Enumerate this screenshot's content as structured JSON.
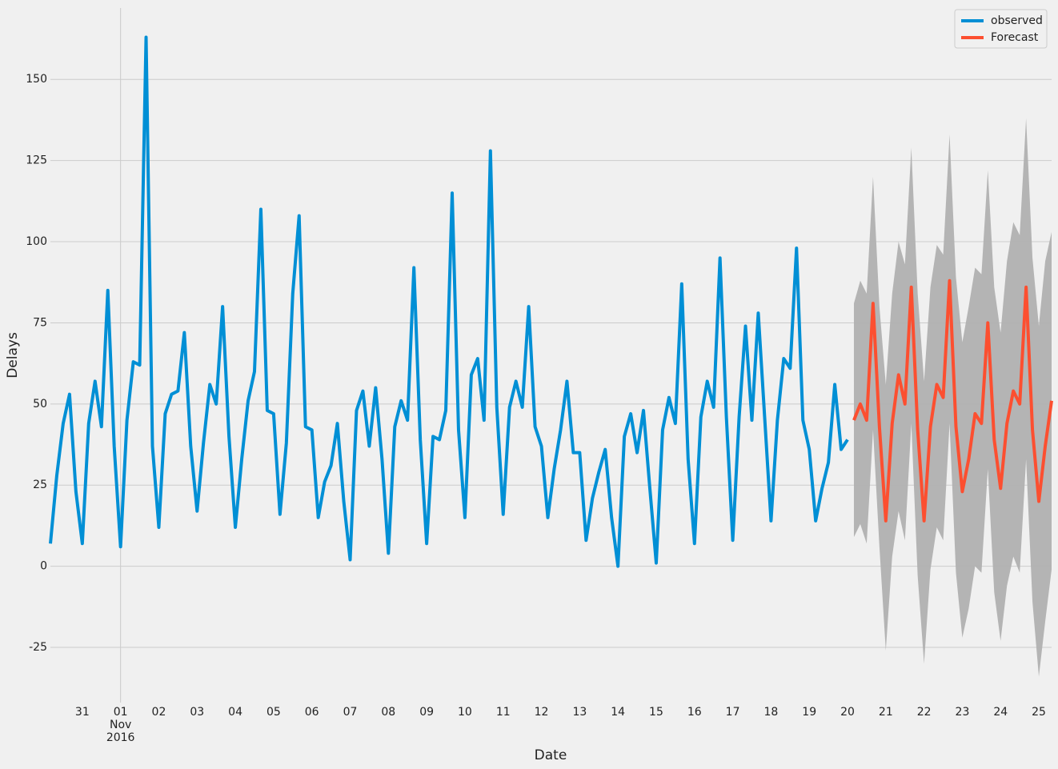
{
  "chart_data": {
    "type": "line",
    "x_label": "Date",
    "y_label": "Delays",
    "xlim": [
      "2016-10-30T04:00",
      "2016-11-25T08:00"
    ],
    "ylim": [
      -42,
      172
    ],
    "yticks": [
      -25,
      0,
      25,
      50,
      75,
      100,
      125,
      150
    ],
    "xticks": [
      {
        "value": "2016-10-31T00:00",
        "label": "31"
      },
      {
        "value": "2016-11-01T00:00",
        "label": "01\nNov\n2016"
      },
      {
        "value": "2016-11-02T00:00",
        "label": "02"
      },
      {
        "value": "2016-11-03T00:00",
        "label": "03"
      },
      {
        "value": "2016-11-04T00:00",
        "label": "04"
      },
      {
        "value": "2016-11-05T00:00",
        "label": "05"
      },
      {
        "value": "2016-11-06T00:00",
        "label": "06"
      },
      {
        "value": "2016-11-07T00:00",
        "label": "07"
      },
      {
        "value": "2016-11-08T00:00",
        "label": "08"
      },
      {
        "value": "2016-11-09T00:00",
        "label": "09"
      },
      {
        "value": "2016-11-10T00:00",
        "label": "10"
      },
      {
        "value": "2016-11-11T00:00",
        "label": "11"
      },
      {
        "value": "2016-11-12T00:00",
        "label": "12"
      },
      {
        "value": "2016-11-13T00:00",
        "label": "13"
      },
      {
        "value": "2016-11-14T00:00",
        "label": "14"
      },
      {
        "value": "2016-11-15T00:00",
        "label": "15"
      },
      {
        "value": "2016-11-16T00:00",
        "label": "16"
      },
      {
        "value": "2016-11-17T00:00",
        "label": "17"
      },
      {
        "value": "2016-11-18T00:00",
        "label": "18"
      },
      {
        "value": "2016-11-19T00:00",
        "label": "19"
      },
      {
        "value": "2016-11-20T00:00",
        "label": "20"
      },
      {
        "value": "2016-11-21T00:00",
        "label": "21"
      },
      {
        "value": "2016-11-22T00:00",
        "label": "22"
      },
      {
        "value": "2016-11-23T00:00",
        "label": "23"
      },
      {
        "value": "2016-11-24T00:00",
        "label": "24"
      },
      {
        "value": "2016-11-25T00:00",
        "label": "25"
      }
    ],
    "major_tick": "2016-11-01T00:00",
    "grid": true,
    "legend": "upper right",
    "series": [
      {
        "name": "observed",
        "color": "#008fd5",
        "x": [
          "2016-10-30T04:00",
          "2016-10-30T08:00",
          "2016-10-30T12:00",
          "2016-10-30T16:00",
          "2016-10-30T20:00",
          "2016-10-31T00:00",
          "2016-10-31T04:00",
          "2016-10-31T08:00",
          "2016-10-31T12:00",
          "2016-10-31T16:00",
          "2016-10-31T20:00",
          "2016-11-01T00:00",
          "2016-11-01T04:00",
          "2016-11-01T08:00",
          "2016-11-01T12:00",
          "2016-11-01T16:00",
          "2016-11-01T20:00",
          "2016-11-02T00:00",
          "2016-11-02T04:00",
          "2016-11-02T08:00",
          "2016-11-02T12:00",
          "2016-11-02T16:00",
          "2016-11-02T20:00",
          "2016-11-03T00:00",
          "2016-11-03T04:00",
          "2016-11-03T08:00",
          "2016-11-03T12:00",
          "2016-11-03T16:00",
          "2016-11-03T20:00",
          "2016-11-04T00:00",
          "2016-11-04T04:00",
          "2016-11-04T08:00",
          "2016-11-04T12:00",
          "2016-11-04T16:00",
          "2016-11-04T20:00",
          "2016-11-05T00:00",
          "2016-11-05T04:00",
          "2016-11-05T08:00",
          "2016-11-05T12:00",
          "2016-11-05T16:00",
          "2016-11-05T20:00",
          "2016-11-06T00:00",
          "2016-11-06T04:00",
          "2016-11-06T08:00",
          "2016-11-06T12:00",
          "2016-11-06T16:00",
          "2016-11-06T20:00",
          "2016-11-07T00:00",
          "2016-11-07T04:00",
          "2016-11-07T08:00",
          "2016-11-07T12:00",
          "2016-11-07T16:00",
          "2016-11-07T20:00",
          "2016-11-08T00:00",
          "2016-11-08T04:00",
          "2016-11-08T08:00",
          "2016-11-08T12:00",
          "2016-11-08T16:00",
          "2016-11-08T20:00",
          "2016-11-09T00:00",
          "2016-11-09T04:00",
          "2016-11-09T08:00",
          "2016-11-09T12:00",
          "2016-11-09T16:00",
          "2016-11-09T20:00",
          "2016-11-10T00:00",
          "2016-11-10T04:00",
          "2016-11-10T08:00",
          "2016-11-10T12:00",
          "2016-11-10T16:00",
          "2016-11-10T20:00",
          "2016-11-11T00:00",
          "2016-11-11T04:00",
          "2016-11-11T08:00",
          "2016-11-11T12:00",
          "2016-11-11T16:00",
          "2016-11-11T20:00",
          "2016-11-12T00:00",
          "2016-11-12T04:00",
          "2016-11-12T08:00",
          "2016-11-12T12:00",
          "2016-11-12T16:00",
          "2016-11-12T20:00",
          "2016-11-13T00:00",
          "2016-11-13T04:00",
          "2016-11-13T08:00",
          "2016-11-13T12:00",
          "2016-11-13T16:00",
          "2016-11-13T20:00",
          "2016-11-14T00:00",
          "2016-11-14T04:00",
          "2016-11-14T08:00",
          "2016-11-14T12:00",
          "2016-11-14T16:00",
          "2016-11-14T20:00",
          "2016-11-15T00:00",
          "2016-11-15T04:00",
          "2016-11-15T08:00",
          "2016-11-15T12:00",
          "2016-11-15T16:00",
          "2016-11-15T20:00",
          "2016-11-16T00:00",
          "2016-11-16T04:00",
          "2016-11-16T08:00",
          "2016-11-16T12:00",
          "2016-11-16T16:00",
          "2016-11-16T20:00",
          "2016-11-17T00:00",
          "2016-11-17T04:00",
          "2016-11-17T08:00",
          "2016-11-17T12:00",
          "2016-11-17T16:00",
          "2016-11-17T20:00",
          "2016-11-18T00:00",
          "2016-11-18T04:00",
          "2016-11-18T08:00",
          "2016-11-18T12:00",
          "2016-11-18T16:00",
          "2016-11-18T20:00",
          "2016-11-19T00:00",
          "2016-11-19T04:00",
          "2016-11-19T08:00",
          "2016-11-19T12:00",
          "2016-11-19T16:00",
          "2016-11-19T20:00",
          "2016-11-20T00:00"
        ],
        "values": [
          7,
          28,
          44,
          53,
          23,
          7,
          44,
          57,
          43,
          85,
          37,
          6,
          45,
          63,
          62,
          163,
          37,
          12,
          47,
          53,
          54,
          72,
          37,
          17,
          38,
          56,
          50,
          80,
          40,
          12,
          33,
          51,
          60,
          110,
          48,
          47,
          16,
          38,
          84,
          108,
          43,
          42,
          15,
          26,
          31,
          44,
          20,
          2,
          48,
          54,
          37,
          55,
          33,
          4,
          43,
          51,
          45,
          92,
          39,
          7,
          40,
          39,
          48,
          115,
          42,
          15,
          59,
          64,
          45,
          128,
          49,
          16,
          49,
          57,
          49,
          80,
          43,
          37,
          15,
          30,
          42,
          57,
          35,
          35,
          8,
          21,
          29,
          36,
          15,
          0,
          40,
          47,
          35,
          48,
          24,
          1,
          42,
          52,
          44,
          87,
          33,
          7,
          46,
          57,
          49,
          95,
          46,
          8,
          46,
          74,
          45,
          78,
          46,
          14,
          45,
          64,
          61,
          98,
          45,
          36,
          14,
          24,
          32,
          56,
          36,
          39
        ]
      },
      {
        "name": "Forecast",
        "color": "#fc4f30",
        "x": [
          "2016-11-20T04:00",
          "2016-11-20T08:00",
          "2016-11-20T12:00",
          "2016-11-20T16:00",
          "2016-11-20T20:00",
          "2016-11-21T00:00",
          "2016-11-21T04:00",
          "2016-11-21T08:00",
          "2016-11-21T12:00",
          "2016-11-21T16:00",
          "2016-11-21T20:00",
          "2016-11-22T00:00",
          "2016-11-22T04:00",
          "2016-11-22T08:00",
          "2016-11-22T12:00",
          "2016-11-22T16:00",
          "2016-11-22T20:00",
          "2016-11-23T00:00",
          "2016-11-23T04:00",
          "2016-11-23T08:00",
          "2016-11-23T12:00",
          "2016-11-23T16:00",
          "2016-11-23T20:00",
          "2016-11-24T00:00",
          "2016-11-24T04:00",
          "2016-11-24T08:00",
          "2016-11-24T12:00",
          "2016-11-24T16:00",
          "2016-11-24T20:00",
          "2016-11-25T00:00",
          "2016-11-25T04:00",
          "2016-11-25T08:00"
        ],
        "values": [
          45,
          50,
          45,
          81,
          43,
          14,
          44,
          59,
          50,
          86,
          42,
          14,
          43,
          56,
          52,
          88,
          43,
          23,
          33,
          47,
          44,
          75,
          39,
          24,
          44,
          54,
          50,
          86,
          42,
          20,
          37,
          51
        ]
      }
    ],
    "interval": {
      "color": "#b0b0b0",
      "lower": [
        9,
        13,
        7,
        42,
        6,
        -26,
        3,
        17,
        8,
        44,
        -3,
        -30,
        -1,
        12,
        8,
        44,
        -2,
        -22,
        -13,
        0,
        -2,
        30,
        -8,
        -23,
        -6,
        3,
        -2,
        33,
        -11,
        -34,
        -17,
        -1
      ],
      "upper": [
        81,
        88,
        84,
        120,
        80,
        56,
        84,
        100,
        93,
        129,
        84,
        57,
        86,
        99,
        96,
        133,
        89,
        69,
        80,
        92,
        90,
        122,
        86,
        72,
        94,
        106,
        102,
        138,
        95,
        74,
        94,
        103
      ]
    }
  }
}
